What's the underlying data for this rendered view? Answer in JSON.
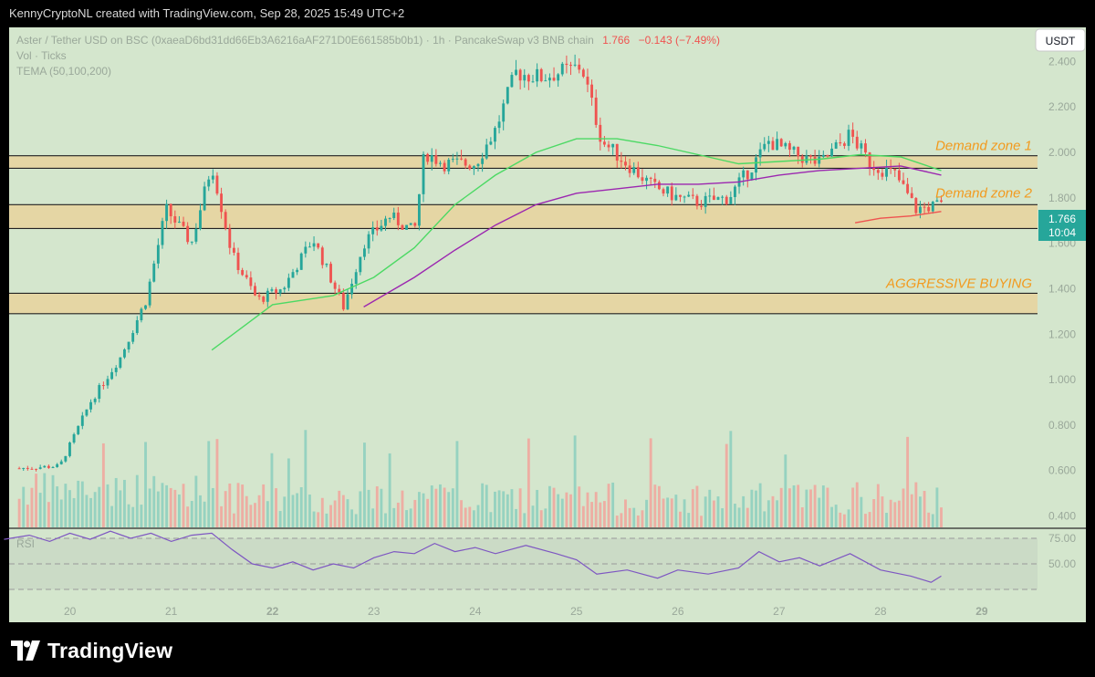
{
  "header": {
    "credit": "KennyCryptoNL created with TradingView.com, Sep 28, 2025 15:49 UTC+2"
  },
  "legend": {
    "symbol": "Aster / Tether USD on BSC (0xaeaD6bd31dd66Eb3A6216aAF271D0E661585b0b1) · 1h · PancakeSwap v3 BNB chain",
    "last_price": "1.766",
    "change": "−0.143 (−7.49%)",
    "volume_label": "Vol · Ticks",
    "tema_label": "TEMA (50,100,200)"
  },
  "currency_button": "USDT",
  "price_tag": {
    "price": "1.766",
    "countdown": "10:04"
  },
  "rsi_label": "RSI",
  "zone_labels": [
    "Demand zone 1",
    "Demand zone 2",
    "AGGRESSIVE BUYING"
  ],
  "footer": {
    "brand": "TradingView"
  },
  "colors": {
    "background": "#000000",
    "pane": "#d4e6cd",
    "zone_fill": "#e5d6a4",
    "up": "#26a69a",
    "down": "#ef5350",
    "ema_green": "#4cd964",
    "ema_purple": "#9c27b0",
    "ema_red": "#ef5350",
    "rsi_line": "#7e57c2",
    "zone_label": "#f29a1e",
    "price_tag": "#26a69a"
  },
  "chart_data": {
    "type": "candlestick",
    "timeframe": "1h",
    "x_tick_labels": [
      "20",
      "21",
      "22",
      "23",
      "24",
      "25",
      "26",
      "27",
      "28",
      "29"
    ],
    "x_range_days": [
      19.4,
      29.55
    ],
    "y_tick_labels": [
      "2.400",
      "2.200",
      "2.000",
      "1.800",
      "1.600",
      "1.400",
      "1.200",
      "1.000",
      "0.800",
      "0.600",
      "0.400"
    ],
    "ylim": [
      0.35,
      2.55
    ],
    "last_price": 1.766,
    "zones": [
      {
        "label": "Demand zone 1",
        "low": 1.93,
        "high": 1.985
      },
      {
        "label": "Demand zone 2",
        "low": 1.665,
        "high": 1.77
      },
      {
        "label": "AGGRESSIVE BUYING",
        "low": 1.29,
        "high": 1.38
      }
    ],
    "price_path": [
      [
        19.5,
        0.61
      ],
      [
        19.9,
        0.62
      ],
      [
        20.2,
        0.9
      ],
      [
        20.5,
        1.1
      ],
      [
        20.75,
        1.35
      ],
      [
        20.95,
        1.75
      ],
      [
        21.2,
        1.6
      ],
      [
        21.4,
        1.95
      ],
      [
        21.6,
        1.55
      ],
      [
        21.85,
        1.35
      ],
      [
        22.1,
        1.4
      ],
      [
        22.4,
        1.62
      ],
      [
        22.7,
        1.32
      ],
      [
        22.9,
        1.6
      ],
      [
        23.15,
        1.72
      ],
      [
        23.4,
        1.65
      ],
      [
        23.5,
        2.0
      ],
      [
        23.7,
        1.95
      ],
      [
        24.0,
        1.95
      ],
      [
        24.2,
        2.1
      ],
      [
        24.4,
        2.35
      ],
      [
        24.65,
        2.33
      ],
      [
        24.9,
        2.36
      ],
      [
        25.05,
        2.38
      ],
      [
        25.25,
        2.05
      ],
      [
        25.5,
        1.95
      ],
      [
        25.75,
        1.85
      ],
      [
        26.0,
        1.8
      ],
      [
        26.2,
        1.78
      ],
      [
        26.5,
        1.8
      ],
      [
        26.75,
        1.95
      ],
      [
        26.9,
        2.05
      ],
      [
        27.1,
        2.0
      ],
      [
        27.4,
        1.95
      ],
      [
        27.7,
        2.08
      ],
      [
        27.9,
        1.95
      ],
      [
        28.15,
        1.9
      ],
      [
        28.35,
        1.75
      ],
      [
        28.55,
        1.766
      ]
    ],
    "tema": [
      {
        "name": "TEMA 50",
        "color": "#4cd964",
        "points": [
          [
            21.4,
            1.13
          ],
          [
            22.0,
            1.33
          ],
          [
            22.6,
            1.37
          ],
          [
            23.0,
            1.45
          ],
          [
            23.4,
            1.58
          ],
          [
            23.8,
            1.77
          ],
          [
            24.2,
            1.9
          ],
          [
            24.6,
            2.0
          ],
          [
            25.0,
            2.06
          ],
          [
            25.4,
            2.06
          ],
          [
            25.8,
            2.03
          ],
          [
            26.2,
            1.99
          ],
          [
            26.6,
            1.95
          ],
          [
            27.0,
            1.96
          ],
          [
            27.4,
            1.97
          ],
          [
            27.8,
            1.99
          ],
          [
            28.2,
            1.98
          ],
          [
            28.6,
            1.92
          ]
        ]
      },
      {
        "name": "TEMA 100",
        "color": "#9c27b0",
        "points": [
          [
            22.9,
            1.32
          ],
          [
            23.4,
            1.45
          ],
          [
            23.8,
            1.57
          ],
          [
            24.2,
            1.68
          ],
          [
            24.6,
            1.77
          ],
          [
            25.0,
            1.82
          ],
          [
            25.4,
            1.84
          ],
          [
            25.8,
            1.86
          ],
          [
            26.2,
            1.86
          ],
          [
            26.6,
            1.87
          ],
          [
            27.0,
            1.9
          ],
          [
            27.4,
            1.92
          ],
          [
            27.8,
            1.93
          ],
          [
            28.2,
            1.94
          ],
          [
            28.6,
            1.9
          ]
        ]
      },
      {
        "name": "TEMA 200",
        "color": "#ef5350",
        "points": [
          [
            27.75,
            1.69
          ],
          [
            28.0,
            1.71
          ],
          [
            28.3,
            1.72
          ],
          [
            28.6,
            1.74
          ]
        ]
      }
    ],
    "rsi": {
      "levels": [
        75,
        50,
        25
      ],
      "tick_labels": [
        "75.00",
        "50.00"
      ],
      "path": [
        [
          19.35,
          74
        ],
        [
          19.6,
          78
        ],
        [
          19.8,
          72
        ],
        [
          20.0,
          80
        ],
        [
          20.2,
          74
        ],
        [
          20.4,
          82
        ],
        [
          20.6,
          75
        ],
        [
          20.8,
          80
        ],
        [
          21.0,
          72
        ],
        [
          21.2,
          78
        ],
        [
          21.4,
          80
        ],
        [
          21.6,
          64
        ],
        [
          21.8,
          50
        ],
        [
          22.0,
          46
        ],
        [
          22.2,
          52
        ],
        [
          22.4,
          44
        ],
        [
          22.6,
          50
        ],
        [
          22.8,
          46
        ],
        [
          23.0,
          56
        ],
        [
          23.2,
          62
        ],
        [
          23.4,
          60
        ],
        [
          23.6,
          70
        ],
        [
          23.8,
          62
        ],
        [
          24.0,
          66
        ],
        [
          24.2,
          60
        ],
        [
          24.5,
          68
        ],
        [
          24.8,
          60
        ],
        [
          25.0,
          54
        ],
        [
          25.2,
          40
        ],
        [
          25.5,
          44
        ],
        [
          25.8,
          36
        ],
        [
          26.0,
          44
        ],
        [
          26.3,
          40
        ],
        [
          26.6,
          46
        ],
        [
          26.8,
          62
        ],
        [
          27.0,
          52
        ],
        [
          27.2,
          56
        ],
        [
          27.4,
          48
        ],
        [
          27.7,
          60
        ],
        [
          28.0,
          44
        ],
        [
          28.3,
          38
        ],
        [
          28.5,
          32
        ],
        [
          28.6,
          38
        ]
      ]
    }
  }
}
